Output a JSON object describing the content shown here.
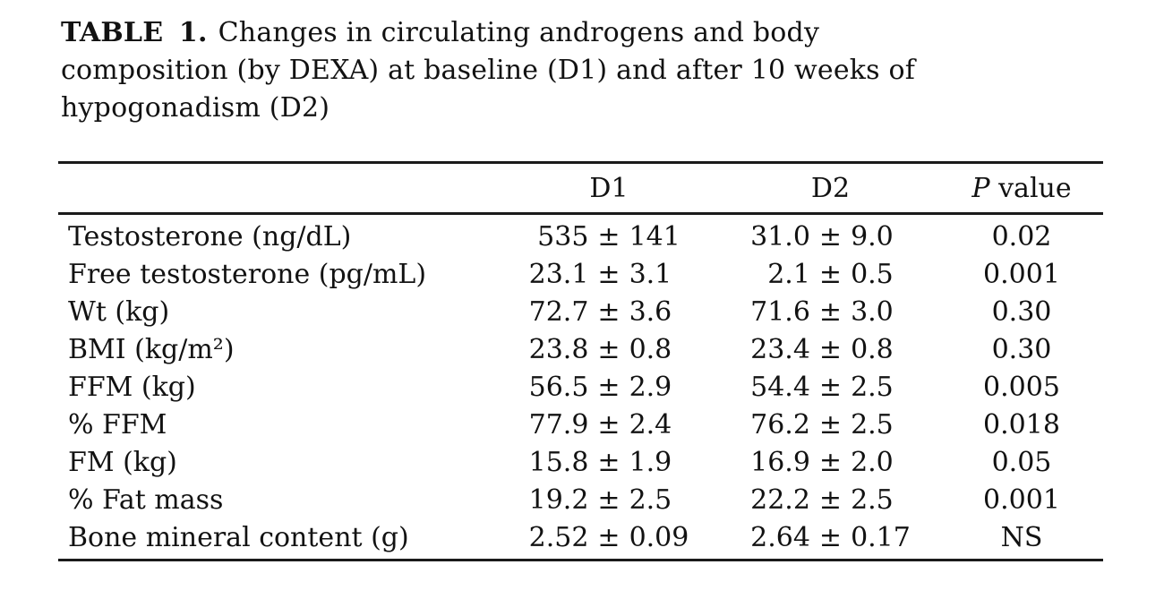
{
  "caption": {
    "label": "TABLE 1.",
    "lines": [
      "Changes in circulating androgens and body",
      "composition (by DEXA) at baseline (D1) and after 10 weeks of",
      "hypogonadism (D2)"
    ]
  },
  "table": {
    "plus_minus": "±",
    "columns": {
      "d1": "D1",
      "d2": "D2",
      "p_italic": "P",
      "p_rest": "value"
    },
    "rows": [
      {
        "label": "Testosterone (ng/dL)",
        "d1_mean": "535",
        "d1_sd": "141",
        "d2_mean": "31.0",
        "d2_sd": "9.0",
        "p": "0.02"
      },
      {
        "label": "Free testosterone (pg/mL)",
        "d1_mean": "23.1",
        "d1_sd": "3.1",
        "d2_mean": "2.1",
        "d2_sd": "0.5",
        "p": "0.001"
      },
      {
        "label": "Wt (kg)",
        "d1_mean": "72.7",
        "d1_sd": "3.6",
        "d2_mean": "71.6",
        "d2_sd": "3.0",
        "p": "0.30"
      },
      {
        "label": "BMI (kg/m²)",
        "d1_mean": "23.8",
        "d1_sd": "0.8",
        "d2_mean": "23.4",
        "d2_sd": "0.8",
        "p": "0.30"
      },
      {
        "label": "FFM (kg)",
        "d1_mean": "56.5",
        "d1_sd": "2.9",
        "d2_mean": "54.4",
        "d2_sd": "2.5",
        "p": "0.005"
      },
      {
        "label": "% FFM",
        "d1_mean": "77.9",
        "d1_sd": "2.4",
        "d2_mean": "76.2",
        "d2_sd": "2.5",
        "p": "0.018"
      },
      {
        "label": "FM (kg)",
        "d1_mean": "15.8",
        "d1_sd": "1.9",
        "d2_mean": "16.9",
        "d2_sd": "2.0",
        "p": "0.05"
      },
      {
        "label": "% Fat mass",
        "d1_mean": "19.2",
        "d1_sd": "2.5",
        "d2_mean": "22.2",
        "d2_sd": "2.5",
        "p": "0.001"
      },
      {
        "label": "Bone mineral content (g)",
        "d1_mean": "2.52",
        "d1_sd": "0.09",
        "d2_mean": "2.64",
        "d2_sd": "0.17",
        "p": "NS"
      }
    ]
  }
}
